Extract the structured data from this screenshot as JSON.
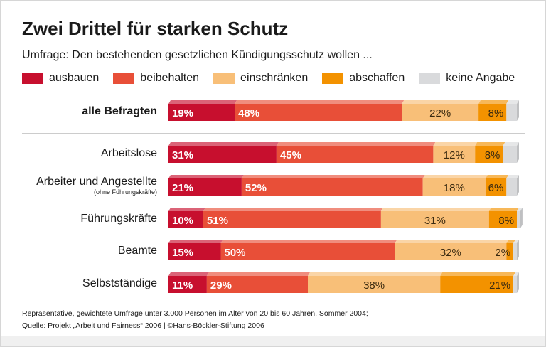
{
  "chart_data": {
    "type": "bar",
    "orientation": "horizontal-stacked",
    "title": "Zwei Drittel für starken Schutz",
    "subtitle": "Umfrage: Den bestehenden gesetzlichen Kündigungsschutz wollen ...",
    "categories": [
      "alle Befragten",
      "Arbeitslose",
      "Arbeiter und Angestellte",
      "Führungskräfte",
      "Beamte",
      "Selbstständige"
    ],
    "category_notes": [
      "",
      "",
      "(ohne Führungskräfte)",
      "",
      "",
      ""
    ],
    "series": [
      {
        "name": "ausbauen",
        "color": "#c70f2e",
        "values": [
          19,
          31,
          21,
          10,
          15,
          11
        ]
      },
      {
        "name": "beibehalten",
        "color": "#e84f38",
        "values": [
          48,
          45,
          52,
          51,
          50,
          29
        ]
      },
      {
        "name": "einschränken",
        "color": "#f8bf78",
        "values": [
          22,
          12,
          18,
          31,
          32,
          38
        ]
      },
      {
        "name": "abschaffen",
        "color": "#f39200",
        "values": [
          8,
          8,
          6,
          8,
          2,
          21
        ]
      },
      {
        "name": "keine Angabe",
        "color": "#d9dadc"
      }
    ],
    "unit": "%",
    "xlim": [
      0,
      100
    ],
    "legend": "top"
  },
  "footer": {
    "line1": "Repräsentative, gewichtete Umfrage unter 3.000 Personen im Alter von 20 bis 60 Jahren, Sommer 2004;",
    "line2": "Quelle: Projekt „Arbeit und Fairness“ 2006 | ©Hans-Böckler-Stiftung 2006"
  }
}
